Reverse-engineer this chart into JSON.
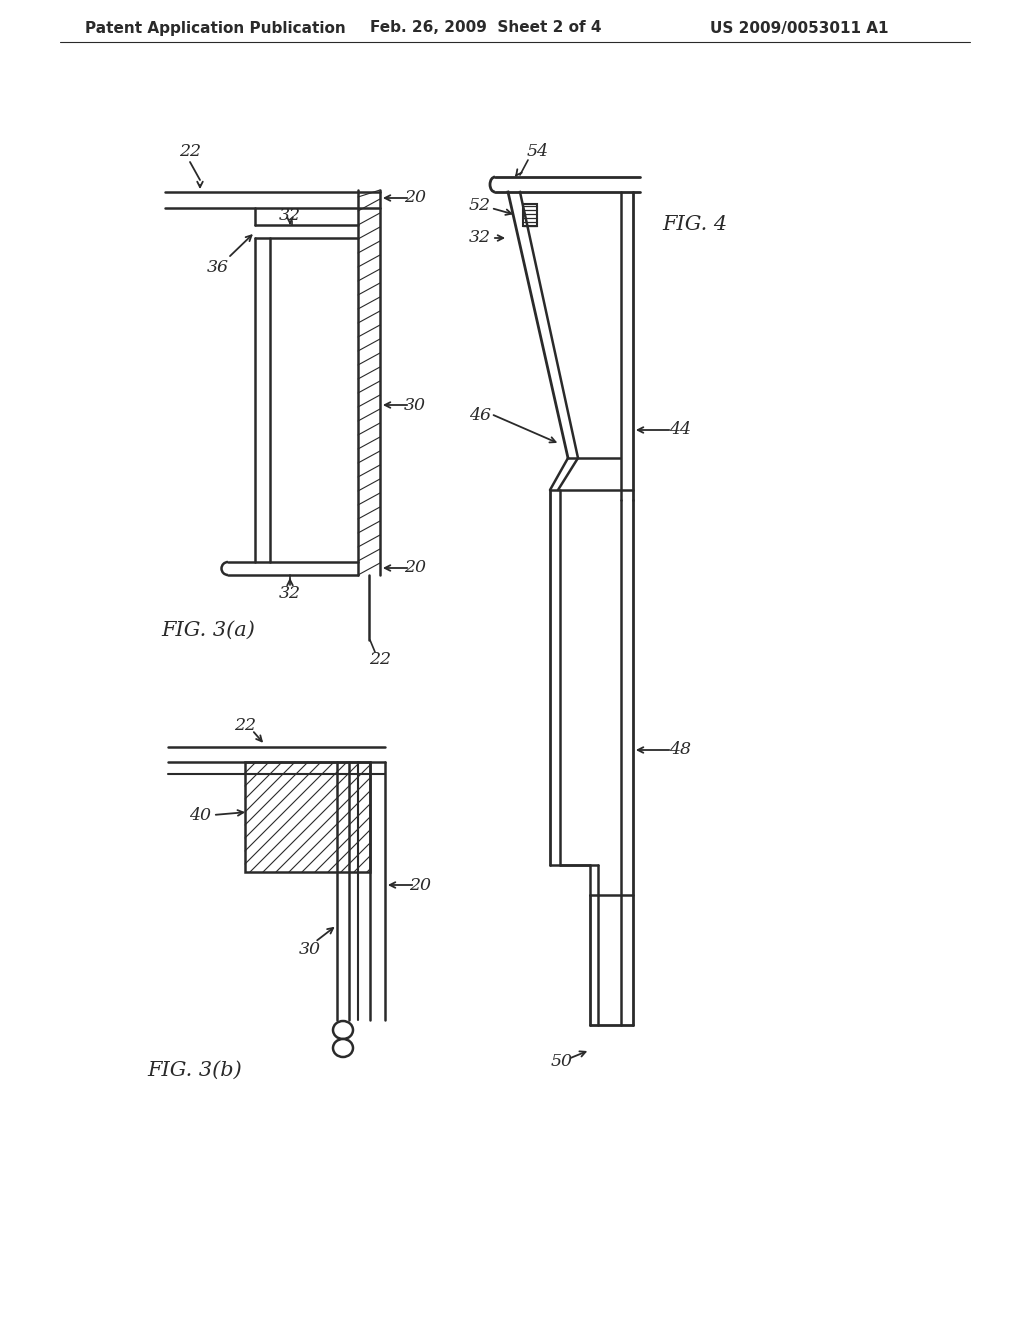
{
  "bg_color": "#ffffff",
  "line_color": "#2a2a2a",
  "header_text": "Patent Application Publication",
  "header_date": "Feb. 26, 2009  Sheet 2 of 4",
  "header_patent": "US 2009/0053011 A1",
  "fig3a_label": "FIG. 3(a)",
  "fig3b_label": "FIG. 3(b)",
  "fig4_label": "FIG. 4"
}
